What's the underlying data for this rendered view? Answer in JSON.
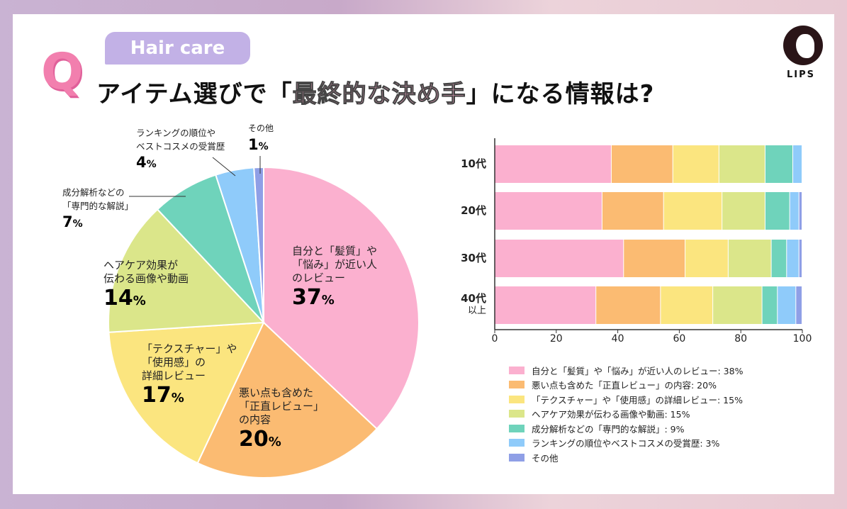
{
  "header": {
    "badge": "Hair care",
    "q_mark": "Q",
    "title_pre": "アイテム選びで「",
    "title_highlight": "最終的な決め手",
    "title_post": "」になる情報は?",
    "logo_text": "LIPS"
  },
  "colors": [
    "#fbb0cf",
    "#fbbb72",
    "#fbe57f",
    "#dbe68a",
    "#6fd3bb",
    "#8fcbfa",
    "#8f9fe6"
  ],
  "chart_data": [
    {
      "type": "pie",
      "slices": [
        {
          "label": "自分と「髪質」や「悩み」が近い人のレビュー",
          "label_lines": [
            "自分と「髪質」や",
            "「悩み」が近い人",
            "のレビュー"
          ],
          "value": 37,
          "text": "37"
        },
        {
          "label": "悪い点も含めた「正直レビュー」の内容",
          "label_lines": [
            "悪い点も含めた",
            "「正直レビュー」",
            "の内容"
          ],
          "value": 20,
          "text": "20"
        },
        {
          "label": "「テクスチャー」や「使用感」の詳細レビュー",
          "label_lines": [
            "「テクスチャー」や",
            "「使用感」の",
            "詳細レビュー"
          ],
          "value": 17,
          "text": "17"
        },
        {
          "label": "ヘアケア効果が伝わる画像や動画",
          "label_lines": [
            "ヘアケア効果が",
            "伝わる画像や動画"
          ],
          "value": 14,
          "text": "14"
        },
        {
          "label": "成分解析などの「専門的な解説」",
          "label_lines": [
            "成分解析などの",
            "「専門的な解説」"
          ],
          "value": 7,
          "text": "7"
        },
        {
          "label": "ランキングの順位やベストコスメの受賞歴",
          "label_lines": [
            "ランキングの順位や",
            "ベストコスメの受賞歴"
          ],
          "value": 4,
          "text": "4"
        },
        {
          "label": "その他",
          "label_lines": [
            "その他"
          ],
          "value": 1,
          "text": "1"
        }
      ],
      "unit": "%"
    },
    {
      "type": "bar",
      "orientation": "horizontal",
      "stacked": true,
      "categories": [
        "10代",
        "20代",
        "30代",
        "40代 以上"
      ],
      "category_lines": [
        [
          "10代"
        ],
        [
          "20代"
        ],
        [
          "30代"
        ],
        [
          "40代",
          "以上"
        ]
      ],
      "xlim": [
        0,
        100
      ],
      "xticks": [
        "0",
        "20",
        "40",
        "60",
        "80",
        "100"
      ],
      "series": [
        {
          "name": "自分と「髪質」や「悩み」が近い人のレビュー: 38%",
          "values": [
            38,
            35,
            42,
            33
          ]
        },
        {
          "name": "悪い点も含めた「正直レビュー」の内容: 20%",
          "values": [
            20,
            20,
            20,
            21
          ]
        },
        {
          "name": "「テクスチャー」や「使用感」の詳細レビュー: 15%",
          "values": [
            15,
            19,
            14,
            17
          ]
        },
        {
          "name": "ヘアケア効果が伝わる画像や動画: 15%",
          "values": [
            15,
            14,
            14,
            16
          ]
        },
        {
          "name": "成分解析などの「専門的な解説」: 9%",
          "values": [
            9,
            8,
            5,
            5
          ]
        },
        {
          "name": "ランキングの順位やベストコスメの受賞歴: 3%",
          "values": [
            3,
            3,
            4,
            6
          ]
        },
        {
          "name": "その他",
          "values": [
            0,
            1,
            1,
            2
          ]
        }
      ],
      "legend": "bottom"
    }
  ]
}
